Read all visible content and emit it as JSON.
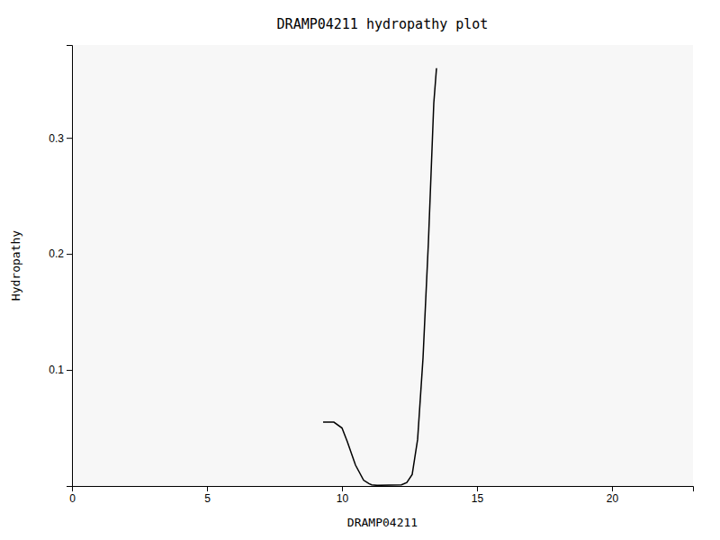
{
  "chart_data": {
    "type": "line",
    "title": "DRAMP04211 hydropathy plot",
    "xlabel": "DRAMP04211",
    "ylabel": "Hydropathy",
    "x": [
      9.3,
      9.7,
      10.0,
      10.2,
      10.5,
      10.8,
      11.0,
      11.1,
      11.3,
      12.2,
      12.4,
      12.6,
      12.8,
      13.0,
      13.2,
      13.4,
      13.5
    ],
    "values": [
      0.055,
      0.055,
      0.05,
      0.038,
      0.018,
      0.005,
      0.002,
      0.001,
      0.0005,
      0.001,
      0.003,
      0.01,
      0.04,
      0.11,
      0.21,
      0.33,
      0.36
    ],
    "color": "#000000",
    "xlim": [
      0,
      23
    ],
    "ylim": [
      0,
      0.38
    ],
    "xticks": [
      0,
      5,
      10,
      15,
      20
    ],
    "yticks": [
      0.1,
      0.2,
      0.3
    ]
  }
}
